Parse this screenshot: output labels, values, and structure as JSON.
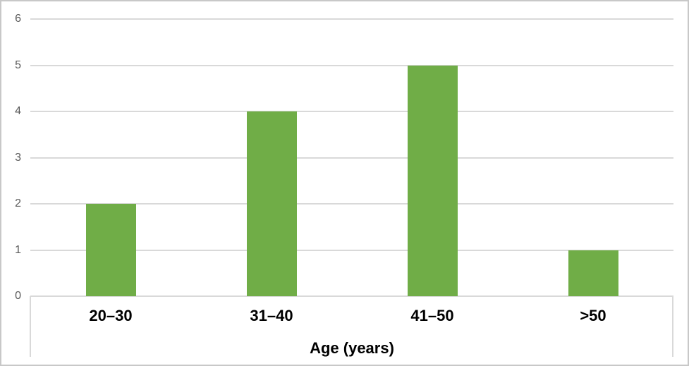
{
  "chart_data": {
    "type": "bar",
    "categories": [
      "20–30",
      "31–40",
      "41–50",
      ">50"
    ],
    "values": [
      2,
      4,
      5,
      1
    ],
    "title": "",
    "xlabel": "Age (years)",
    "ylabel": "",
    "ylim": [
      0,
      6
    ],
    "yticks": [
      0,
      1,
      2,
      3,
      4,
      5,
      6
    ],
    "legend": "none",
    "grid": "horizontal",
    "bar_color": "#70AD47",
    "gridline_color": "#D9D9D9",
    "y_tick_label_color": "#595959",
    "category_label_color": "#000000",
    "frame_border_color": "#C8C8C8"
  }
}
